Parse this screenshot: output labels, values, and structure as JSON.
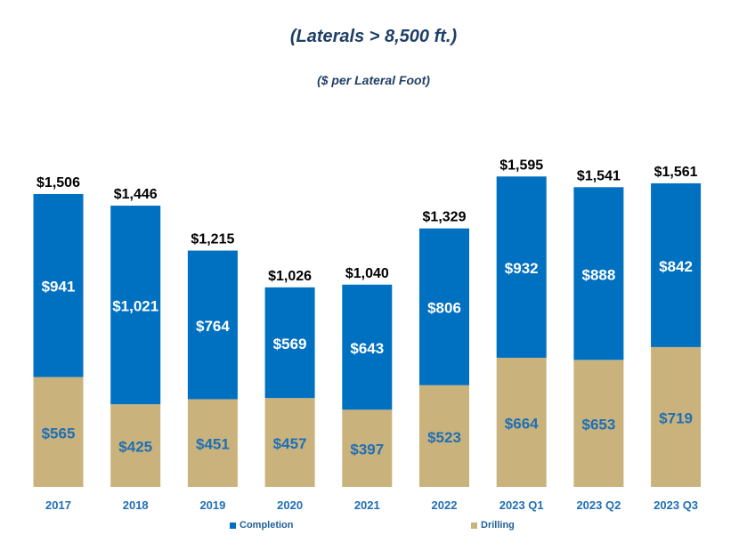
{
  "title": "(Laterals > 8,500 ft.)",
  "subtitle": "($ per Lateral Foot)",
  "colors": {
    "completion": "#0070c0",
    "drilling": "#c9b27c",
    "axis_label": "#1f6fb5",
    "total_label": "#000000",
    "segment_label_completion": "#ffffff",
    "segment_label_drilling": "#1f6fb5"
  },
  "chart_data": {
    "type": "bar",
    "stacked": true,
    "title": "(Laterals > 8,500 ft.)",
    "subtitle": "($ per Lateral Foot)",
    "categories": [
      "2017",
      "2018",
      "2019",
      "2020",
      "2021",
      "2022",
      "2023 Q1",
      "2023 Q2",
      "2023 Q3"
    ],
    "series": [
      {
        "name": "Drilling",
        "values": [
          565,
          425,
          451,
          457,
          397,
          523,
          664,
          653,
          719
        ],
        "labels": [
          "$565",
          "$425",
          "$451",
          "$457",
          "$397",
          "$523",
          "$664",
          "$653",
          "$719"
        ]
      },
      {
        "name": "Completion",
        "values": [
          941,
          1021,
          764,
          569,
          643,
          806,
          932,
          888,
          842
        ],
        "labels": [
          "$941",
          "$1,021",
          "$764",
          "$569",
          "$643",
          "$806",
          "$932",
          "$888",
          "$842"
        ]
      }
    ],
    "totals": [
      1506,
      1446,
      1215,
      1026,
      1040,
      1329,
      1595,
      1541,
      1561
    ],
    "total_labels": [
      "$1,506",
      "$1,446",
      "$1,215",
      "$1,026",
      "$1,040",
      "$1,329",
      "$1,595",
      "$1,541",
      "$1,561"
    ],
    "ylim": [
      0,
      1650
    ],
    "grid": false,
    "legend_position": "bottom",
    "legend": [
      "Completion",
      "Drilling"
    ]
  }
}
